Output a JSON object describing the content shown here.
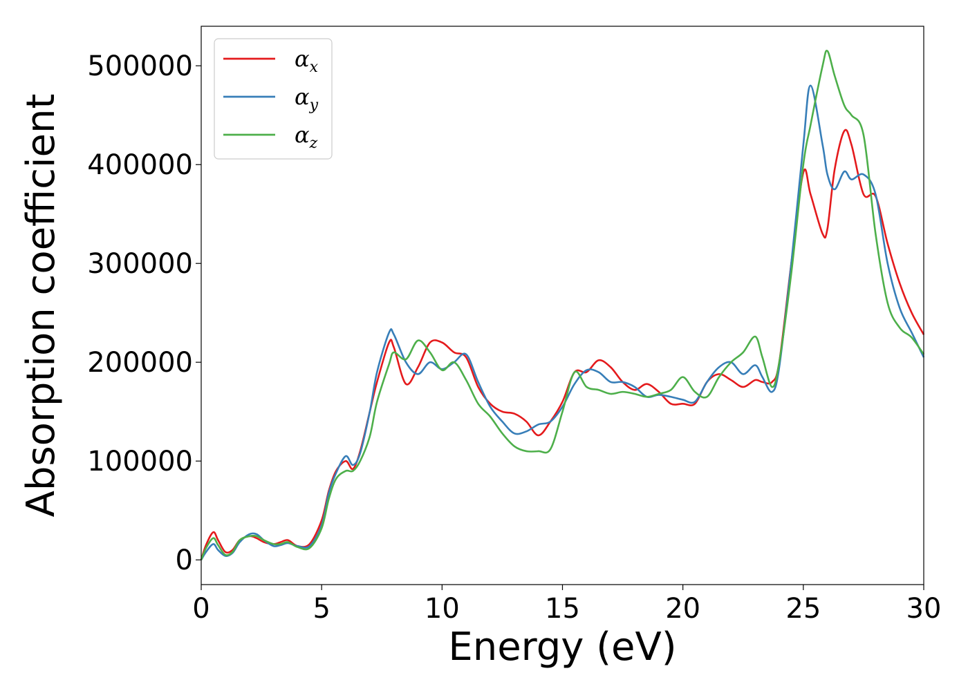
{
  "chart_data": {
    "type": "line",
    "title": "",
    "xlabel": "Energy (eV)",
    "ylabel": "Absorption coefficient",
    "xlim": [
      0,
      30
    ],
    "ylim": [
      -25000,
      540000
    ],
    "xticks": [
      0,
      5,
      10,
      15,
      20,
      25,
      30
    ],
    "yticks": [
      0,
      100000,
      200000,
      300000,
      400000,
      500000
    ],
    "xtick_labels": [
      "0",
      "5",
      "10",
      "15",
      "20",
      "25",
      "30"
    ],
    "ytick_labels": [
      "0",
      "100000",
      "200000",
      "300000",
      "400000",
      "500000"
    ],
    "grid": false,
    "legend_position": "top-left",
    "legend_symbol": "α",
    "series": [
      {
        "name": "x",
        "color": "#e41a1c",
        "x": [
          0,
          0.2,
          0.5,
          0.7,
          1.0,
          1.3,
          1.6,
          2.0,
          2.3,
          2.6,
          3.0,
          3.3,
          3.6,
          4.0,
          4.5,
          5.0,
          5.3,
          5.6,
          6.0,
          6.3,
          6.6,
          7.0,
          7.3,
          7.8,
          8.0,
          8.5,
          9.0,
          9.5,
          10.0,
          10.5,
          11.0,
          11.5,
          12.0,
          12.5,
          13.0,
          13.5,
          14.0,
          14.5,
          15.0,
          15.5,
          16.0,
          16.5,
          17.0,
          17.5,
          18.0,
          18.5,
          19.0,
          19.5,
          20.0,
          20.5,
          21.0,
          21.5,
          22.0,
          22.5,
          23.0,
          23.3,
          23.7,
          24.0,
          24.5,
          25.0,
          25.3,
          25.8,
          26.0,
          26.3,
          26.7,
          27.0,
          27.5,
          28.0,
          28.5,
          29.0,
          29.5,
          30.0
        ],
        "values": [
          0,
          15000,
          28000,
          20000,
          8000,
          10000,
          20000,
          24000,
          22000,
          18000,
          16000,
          18000,
          20000,
          14000,
          16000,
          40000,
          70000,
          90000,
          100000,
          92000,
          110000,
          150000,
          180000,
          220000,
          215000,
          178000,
          195000,
          220000,
          220000,
          210000,
          205000,
          175000,
          158000,
          150000,
          148000,
          140000,
          126000,
          140000,
          160000,
          190000,
          190000,
          202000,
          195000,
          180000,
          172000,
          178000,
          170000,
          158000,
          158000,
          158000,
          180000,
          188000,
          182000,
          175000,
          182000,
          180000,
          180000,
          200000,
          300000,
          392000,
          370000,
          330000,
          335000,
          395000,
          434000,
          420000,
          370000,
          368000,
          320000,
          280000,
          250000,
          228000
        ]
      },
      {
        "name": "y",
        "color": "#377eb8",
        "x": [
          0,
          0.2,
          0.5,
          0.7,
          1.0,
          1.3,
          1.6,
          2.0,
          2.3,
          2.6,
          3.0,
          3.3,
          3.6,
          4.0,
          4.5,
          5.0,
          5.3,
          5.6,
          6.0,
          6.3,
          6.6,
          7.0,
          7.3,
          7.8,
          8.0,
          8.5,
          9.0,
          9.5,
          10.0,
          10.5,
          11.0,
          11.5,
          12.0,
          12.5,
          13.0,
          13.5,
          14.0,
          14.5,
          15.0,
          15.5,
          16.0,
          16.5,
          17.0,
          17.5,
          18.0,
          18.5,
          19.0,
          19.5,
          20.0,
          20.5,
          21.0,
          21.5,
          22.0,
          22.5,
          23.0,
          23.3,
          23.7,
          24.0,
          24.5,
          25.0,
          25.3,
          25.8,
          26.0,
          26.3,
          26.7,
          27.0,
          27.5,
          28.0,
          28.5,
          29.0,
          29.5,
          30.0
        ],
        "values": [
          0,
          8000,
          16000,
          10000,
          4000,
          7000,
          18000,
          26000,
          26000,
          20000,
          14000,
          15000,
          17000,
          14000,
          14000,
          35000,
          68000,
          88000,
          105000,
          96000,
          108000,
          150000,
          190000,
          230000,
          228000,
          200000,
          188000,
          200000,
          193000,
          200000,
          208000,
          180000,
          155000,
          140000,
          128000,
          130000,
          137000,
          140000,
          155000,
          178000,
          192000,
          190000,
          180000,
          180000,
          175000,
          165000,
          167000,
          165000,
          162000,
          160000,
          180000,
          195000,
          200000,
          188000,
          197000,
          185000,
          170000,
          195000,
          300000,
          420000,
          480000,
          420000,
          390000,
          375000,
          393000,
          385000,
          390000,
          370000,
          300000,
          255000,
          230000,
          205000
        ]
      },
      {
        "name": "z",
        "color": "#4daf4a",
        "x": [
          0,
          0.2,
          0.5,
          0.7,
          1.0,
          1.3,
          1.6,
          2.0,
          2.3,
          2.6,
          3.0,
          3.3,
          3.6,
          4.0,
          4.5,
          5.0,
          5.3,
          5.6,
          6.0,
          6.3,
          6.6,
          7.0,
          7.3,
          7.8,
          8.0,
          8.5,
          9.0,
          9.5,
          10.0,
          10.5,
          11.0,
          11.5,
          12.0,
          12.5,
          13.0,
          13.5,
          14.0,
          14.5,
          15.0,
          15.5,
          16.0,
          16.5,
          17.0,
          17.5,
          18.0,
          18.5,
          19.0,
          19.5,
          20.0,
          20.5,
          21.0,
          21.5,
          22.0,
          22.5,
          23.0,
          23.3,
          23.7,
          24.0,
          24.5,
          25.0,
          25.3,
          25.8,
          26.0,
          26.3,
          26.7,
          27.0,
          27.5,
          28.0,
          28.5,
          29.0,
          29.5,
          30.0
        ],
        "values": [
          0,
          12000,
          22000,
          15000,
          5000,
          8000,
          20000,
          24000,
          24000,
          20000,
          16000,
          16000,
          18000,
          13000,
          12000,
          32000,
          62000,
          82000,
          90000,
          90000,
          100000,
          125000,
          160000,
          198000,
          210000,
          203000,
          222000,
          210000,
          192000,
          200000,
          182000,
          158000,
          145000,
          128000,
          115000,
          110000,
          110000,
          112000,
          150000,
          190000,
          175000,
          172000,
          168000,
          170000,
          168000,
          165000,
          168000,
          172000,
          185000,
          170000,
          165000,
          185000,
          200000,
          210000,
          226000,
          205000,
          175000,
          200000,
          290000,
          400000,
          440000,
          500000,
          515000,
          490000,
          460000,
          450000,
          430000,
          330000,
          260000,
          235000,
          225000,
          208000
        ]
      }
    ]
  }
}
